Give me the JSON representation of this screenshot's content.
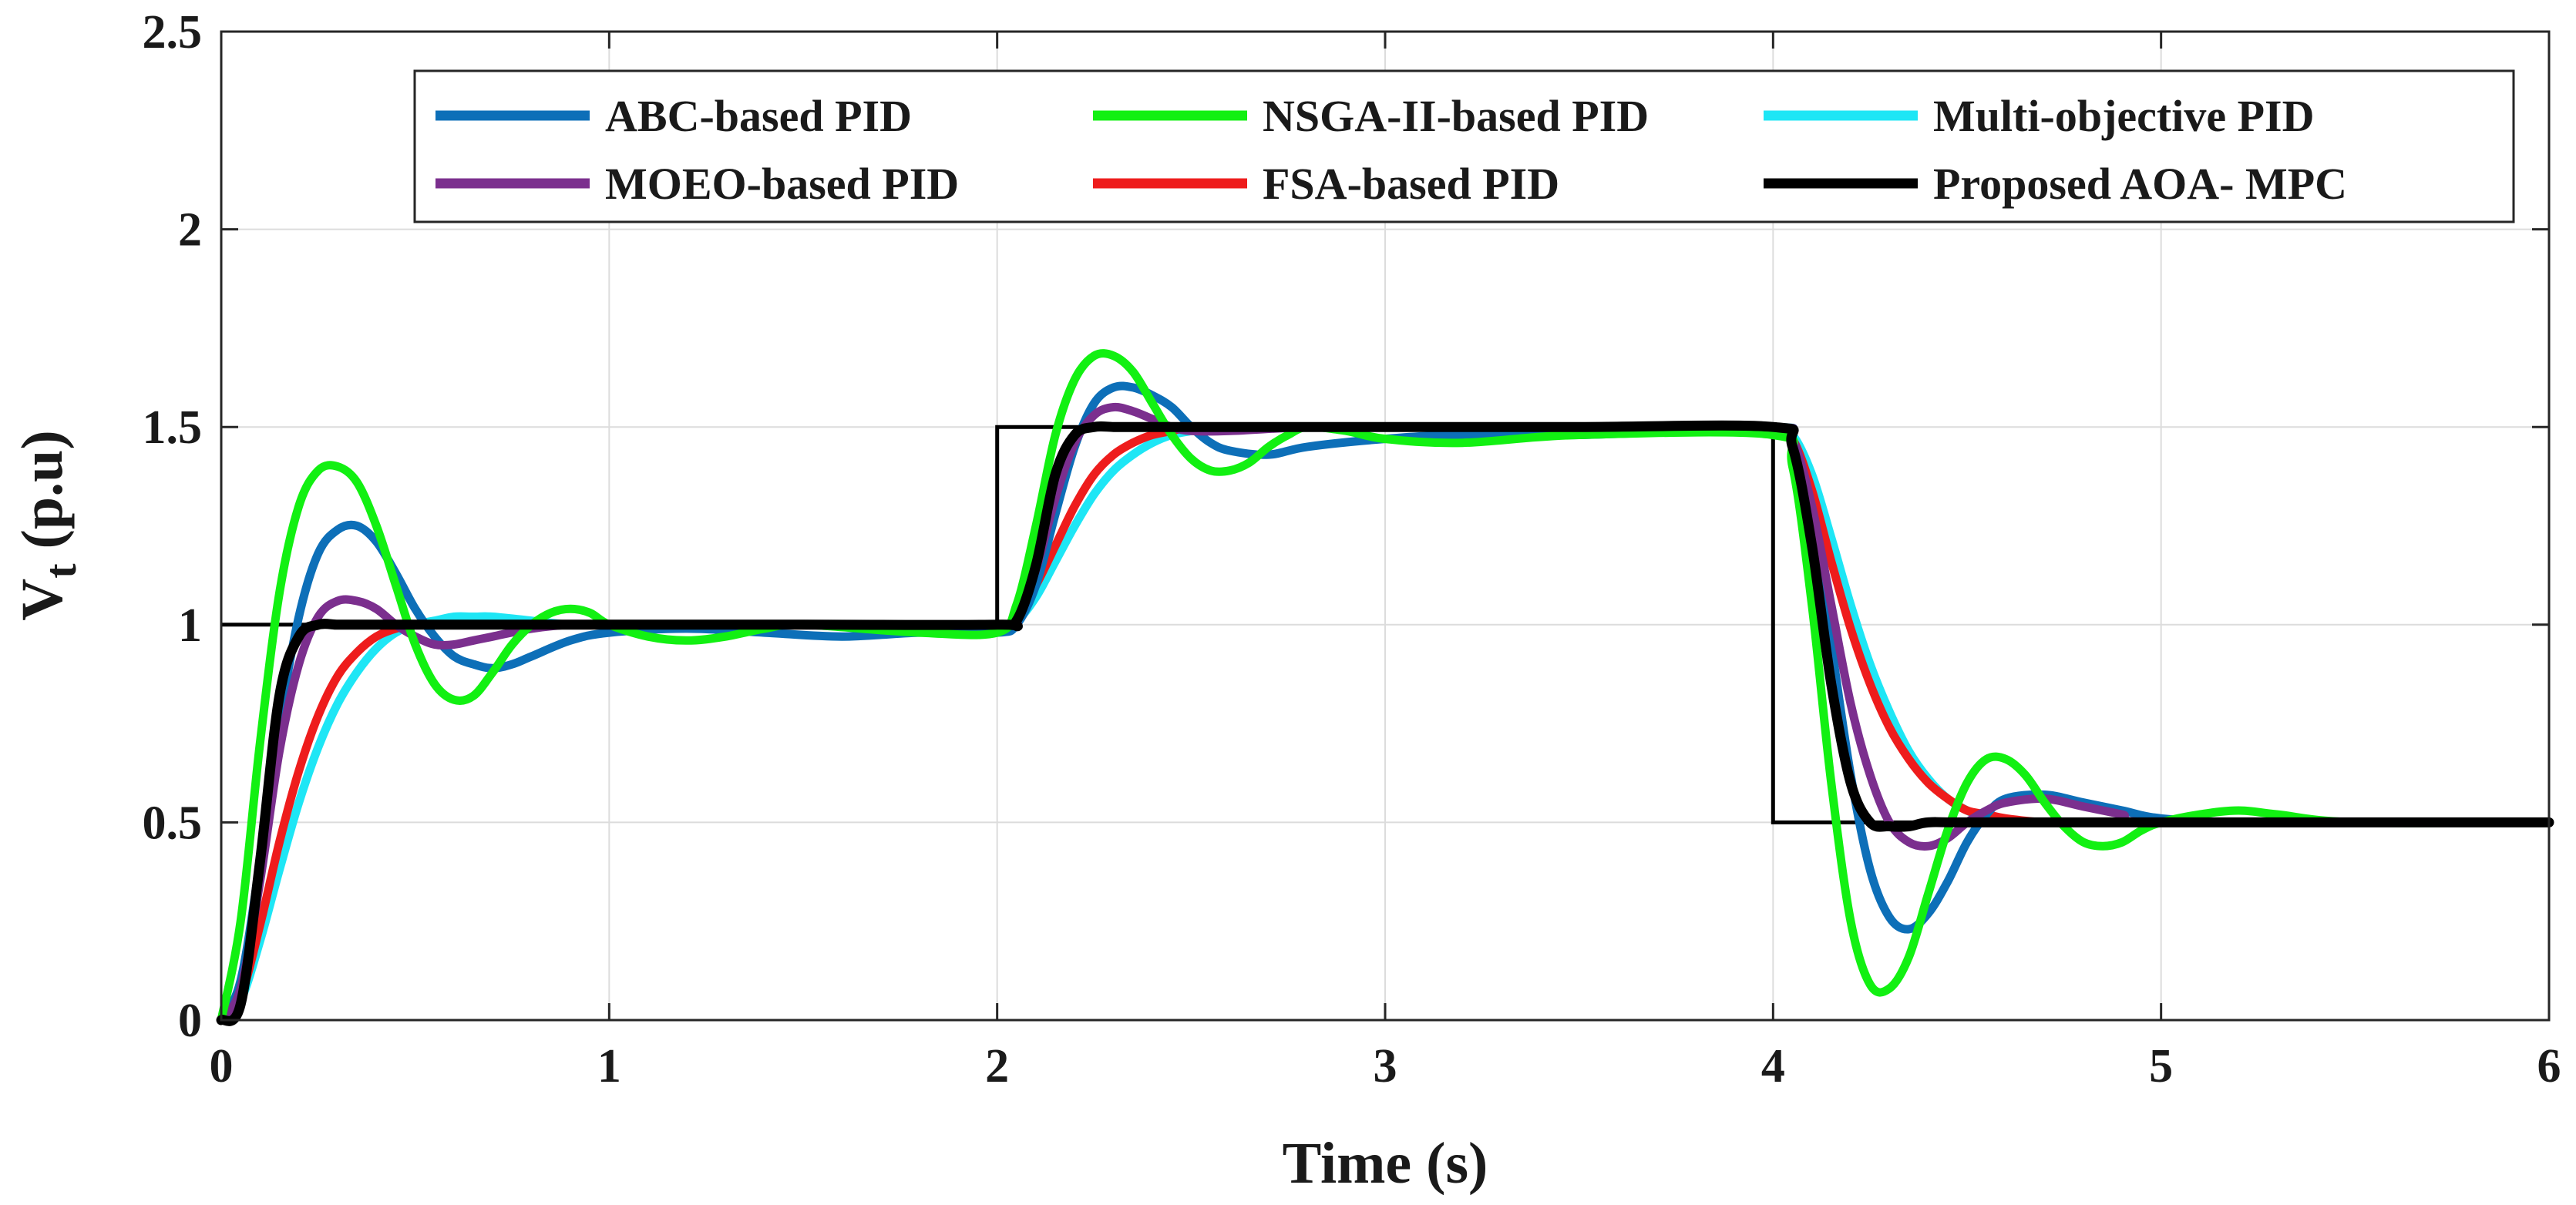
{
  "chart_data": {
    "type": "line",
    "title": "",
    "xlabel": "Time (s)",
    "ylabel": "V",
    "ylabel_sub": "t",
    "ylabel_suffix": " (p.u)",
    "xlim": [
      0,
      6
    ],
    "ylim": [
      0,
      2.5
    ],
    "x_ticks": [
      0,
      1,
      2,
      3,
      4,
      5,
      6
    ],
    "x_tick_labels": [
      "0",
      "1",
      "2",
      "3",
      "4",
      "5",
      "6"
    ],
    "y_ticks": [
      0,
      0.5,
      1,
      1.5,
      2,
      2.5
    ],
    "y_tick_labels": [
      "0",
      "0.5",
      "1",
      "1.5",
      "2",
      "2.5"
    ],
    "grid": true,
    "legend_position": "top-right",
    "reference": {
      "name": "Reference",
      "color": "#000000",
      "x": [
        0,
        2,
        2,
        4,
        4,
        6
      ],
      "y": [
        1,
        1,
        1.5,
        1.5,
        0.5,
        0.5
      ]
    },
    "series": [
      {
        "name": "ABC-based PID",
        "color": "#0d6fb8",
        "x": [
          0,
          0.05,
          0.1,
          0.15,
          0.2,
          0.25,
          0.3,
          0.35,
          0.4,
          0.45,
          0.5,
          0.55,
          0.6,
          0.65,
          0.7,
          0.75,
          0.8,
          0.9,
          1.0,
          1.2,
          1.4,
          1.6,
          1.8,
          2.0,
          2.05,
          2.1,
          2.15,
          2.2,
          2.25,
          2.3,
          2.35,
          2.4,
          2.45,
          2.5,
          2.55,
          2.6,
          2.7,
          2.8,
          3.0,
          3.2,
          3.5,
          3.8,
          4.0,
          4.05,
          4.1,
          4.15,
          4.2,
          4.25,
          4.3,
          4.35,
          4.4,
          4.45,
          4.5,
          4.55,
          4.6,
          4.7,
          4.8,
          4.9,
          5.0,
          5.2,
          5.5,
          6.0
        ],
        "y": [
          0,
          0.1,
          0.4,
          0.75,
          1.02,
          1.18,
          1.24,
          1.25,
          1.21,
          1.13,
          1.04,
          0.97,
          0.92,
          0.9,
          0.89,
          0.9,
          0.92,
          0.96,
          0.98,
          0.99,
          0.98,
          0.97,
          0.98,
          0.98,
          1.0,
          1.1,
          1.28,
          1.45,
          1.56,
          1.6,
          1.6,
          1.58,
          1.55,
          1.5,
          1.46,
          1.44,
          1.43,
          1.45,
          1.47,
          1.48,
          1.48,
          1.49,
          1.49,
          1.47,
          1.28,
          0.95,
          0.62,
          0.38,
          0.26,
          0.23,
          0.27,
          0.35,
          0.45,
          0.52,
          0.56,
          0.57,
          0.55,
          0.53,
          0.51,
          0.5,
          0.5,
          0.5
        ]
      },
      {
        "name": "NSGA-II-based PID",
        "color": "#12f012",
        "x": [
          0,
          0.05,
          0.1,
          0.15,
          0.2,
          0.25,
          0.3,
          0.35,
          0.4,
          0.45,
          0.5,
          0.55,
          0.6,
          0.65,
          0.7,
          0.75,
          0.8,
          0.85,
          0.9,
          0.95,
          1.0,
          1.1,
          1.2,
          1.3,
          1.4,
          1.5,
          1.8,
          2.0,
          2.05,
          2.1,
          2.15,
          2.2,
          2.25,
          2.3,
          2.35,
          2.4,
          2.45,
          2.5,
          2.55,
          2.6,
          2.65,
          2.7,
          2.75,
          2.8,
          2.9,
          3.0,
          3.2,
          3.5,
          4.0,
          4.05,
          4.1,
          4.15,
          4.2,
          4.25,
          4.3,
          4.35,
          4.4,
          4.45,
          4.5,
          4.55,
          4.6,
          4.65,
          4.7,
          4.75,
          4.8,
          4.85,
          4.9,
          4.95,
          5.0,
          5.1,
          5.2,
          5.3,
          5.5,
          6.0
        ],
        "y": [
          0,
          0.25,
          0.7,
          1.08,
          1.3,
          1.39,
          1.4,
          1.36,
          1.25,
          1.1,
          0.95,
          0.85,
          0.81,
          0.82,
          0.88,
          0.95,
          1.0,
          1.03,
          1.04,
          1.03,
          1.0,
          0.97,
          0.96,
          0.97,
          0.99,
          1.0,
          0.98,
          0.98,
          1.05,
          1.25,
          1.48,
          1.62,
          1.68,
          1.68,
          1.64,
          1.56,
          1.48,
          1.42,
          1.39,
          1.39,
          1.41,
          1.45,
          1.48,
          1.5,
          1.49,
          1.47,
          1.46,
          1.48,
          1.48,
          1.4,
          1.05,
          0.6,
          0.25,
          0.09,
          0.08,
          0.16,
          0.32,
          0.48,
          0.6,
          0.66,
          0.66,
          0.62,
          0.55,
          0.49,
          0.45,
          0.44,
          0.45,
          0.48,
          0.5,
          0.52,
          0.53,
          0.52,
          0.5,
          0.5
        ]
      },
      {
        "name": "Multi-objective PID",
        "color": "#1ee6f5",
        "x": [
          0,
          0.05,
          0.1,
          0.15,
          0.2,
          0.25,
          0.3,
          0.35,
          0.4,
          0.45,
          0.5,
          0.55,
          0.6,
          0.65,
          0.7,
          0.8,
          0.9,
          1.0,
          1.5,
          2.0,
          2.05,
          2.1,
          2.15,
          2.2,
          2.25,
          2.3,
          2.35,
          2.4,
          2.45,
          2.5,
          2.55,
          2.6,
          2.8,
          3.0,
          3.5,
          4.0,
          4.05,
          4.1,
          4.15,
          4.2,
          4.25,
          4.3,
          4.35,
          4.4,
          4.45,
          4.5,
          4.55,
          4.6,
          4.7,
          4.8,
          5.0,
          6.0
        ],
        "y": [
          0,
          0.05,
          0.2,
          0.38,
          0.55,
          0.69,
          0.8,
          0.88,
          0.94,
          0.98,
          1.0,
          1.01,
          1.02,
          1.02,
          1.02,
          1.01,
          1.0,
          1.0,
          1.0,
          1.0,
          1.01,
          1.07,
          1.16,
          1.25,
          1.33,
          1.39,
          1.43,
          1.46,
          1.48,
          1.49,
          1.5,
          1.5,
          1.5,
          1.5,
          1.5,
          1.5,
          1.48,
          1.38,
          1.22,
          1.05,
          0.9,
          0.78,
          0.68,
          0.61,
          0.56,
          0.53,
          0.51,
          0.5,
          0.5,
          0.5,
          0.5,
          0.5
        ]
      },
      {
        "name": "MOEO-based PID",
        "color": "#7b2f8e",
        "x": [
          0,
          0.05,
          0.1,
          0.15,
          0.2,
          0.25,
          0.3,
          0.35,
          0.4,
          0.45,
          0.5,
          0.55,
          0.6,
          0.65,
          0.7,
          0.8,
          0.9,
          1.0,
          1.5,
          2.0,
          2.05,
          2.1,
          2.15,
          2.2,
          2.25,
          2.3,
          2.35,
          2.4,
          2.45,
          2.5,
          2.6,
          2.8,
          3.0,
          3.5,
          4.0,
          4.05,
          4.1,
          4.15,
          4.2,
          4.25,
          4.3,
          4.35,
          4.4,
          4.45,
          4.5,
          4.55,
          4.6,
          4.7,
          4.8,
          4.9,
          5.0,
          6.0
        ],
        "y": [
          0,
          0.08,
          0.35,
          0.68,
          0.9,
          1.02,
          1.06,
          1.06,
          1.04,
          1.0,
          0.97,
          0.95,
          0.95,
          0.96,
          0.97,
          0.99,
          1.0,
          1.0,
          1.0,
          1.0,
          1.02,
          1.14,
          1.32,
          1.46,
          1.53,
          1.55,
          1.54,
          1.52,
          1.5,
          1.49,
          1.49,
          1.5,
          1.5,
          1.5,
          1.5,
          1.47,
          1.3,
          1.05,
          0.8,
          0.62,
          0.5,
          0.45,
          0.44,
          0.46,
          0.5,
          0.53,
          0.55,
          0.56,
          0.54,
          0.52,
          0.5,
          0.5
        ]
      },
      {
        "name": "FSA-based PID",
        "color": "#ee1c1c",
        "x": [
          0,
          0.05,
          0.1,
          0.15,
          0.2,
          0.25,
          0.3,
          0.35,
          0.4,
          0.45,
          0.5,
          0.55,
          0.6,
          0.7,
          0.8,
          1.0,
          1.5,
          2.0,
          2.05,
          2.1,
          2.15,
          2.2,
          2.25,
          2.3,
          2.35,
          2.4,
          2.45,
          2.5,
          2.6,
          2.8,
          3.0,
          3.5,
          4.0,
          4.05,
          4.1,
          4.15,
          4.2,
          4.25,
          4.3,
          4.35,
          4.4,
          4.45,
          4.5,
          4.55,
          4.6,
          4.7,
          4.8,
          5.0,
          6.0
        ],
        "y": [
          0,
          0.06,
          0.24,
          0.45,
          0.63,
          0.77,
          0.87,
          0.93,
          0.97,
          0.99,
          1.0,
          1.0,
          1.0,
          1.0,
          1.0,
          1.0,
          1.0,
          1.0,
          1.02,
          1.1,
          1.2,
          1.3,
          1.38,
          1.43,
          1.46,
          1.48,
          1.49,
          1.5,
          1.5,
          1.5,
          1.5,
          1.5,
          1.5,
          1.47,
          1.34,
          1.16,
          0.99,
          0.85,
          0.74,
          0.66,
          0.6,
          0.56,
          0.53,
          0.52,
          0.51,
          0.5,
          0.5,
          0.5,
          0.5
        ]
      },
      {
        "name": "Proposed AOA- MPC",
        "color": "#000000",
        "x": [
          0,
          0.05,
          0.1,
          0.15,
          0.2,
          0.25,
          0.3,
          0.35,
          0.4,
          0.5,
          1.0,
          1.5,
          2.0,
          2.05,
          2.1,
          2.15,
          2.2,
          2.25,
          2.3,
          2.35,
          2.4,
          2.5,
          3.0,
          3.5,
          4.0,
          4.05,
          4.1,
          4.15,
          4.2,
          4.25,
          4.3,
          4.35,
          4.4,
          4.5,
          5.0,
          6.0
        ],
        "y": [
          0,
          0.04,
          0.4,
          0.82,
          0.97,
          1.0,
          1.0,
          1.0,
          1.0,
          1.0,
          1.0,
          1.0,
          1.0,
          1.01,
          1.15,
          1.38,
          1.48,
          1.5,
          1.5,
          1.5,
          1.5,
          1.5,
          1.5,
          1.5,
          1.5,
          1.45,
          1.2,
          0.85,
          0.6,
          0.5,
          0.49,
          0.49,
          0.5,
          0.5,
          0.5,
          0.5
        ]
      }
    ]
  }
}
